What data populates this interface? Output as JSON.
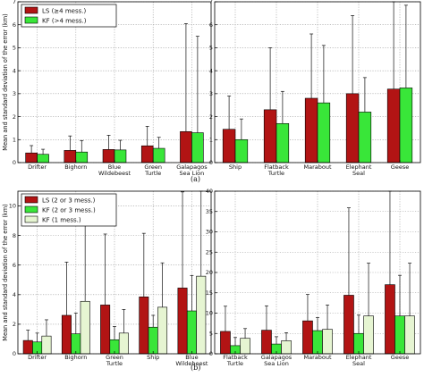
{
  "colors": {
    "LS": "#b21414",
    "KF": "#39e639",
    "KF1": "#e6f5d2"
  },
  "chart_data": [
    {
      "type": "bar",
      "panel": "a-left",
      "legend_position": "top-left",
      "ylabel": "Mean and standard deviation of the error (km)",
      "ylim": [
        0,
        7
      ],
      "yticks": [
        0,
        1,
        2,
        3,
        4,
        5,
        6,
        7
      ],
      "grid": true,
      "categories": [
        "Drifter",
        "Bighorn",
        "Blue\nWildebeest",
        "Green\nTurtle",
        "Galapagos\nSea Lion"
      ],
      "series": [
        {
          "name": "LS (≥4 mess.)",
          "color_key": "LS",
          "values": [
            0.42,
            0.53,
            0.57,
            0.73,
            1.35
          ],
          "err": [
            0.32,
            0.63,
            0.62,
            0.85,
            4.7
          ]
        },
        {
          "name": "KF (>4 mess.)",
          "color_key": "KF",
          "values": [
            0.36,
            0.46,
            0.55,
            0.62,
            1.3
          ],
          "err": [
            0.22,
            0.5,
            0.42,
            0.48,
            4.2
          ]
        }
      ]
    },
    {
      "type": "bar",
      "panel": "a-right",
      "ylim": [
        0,
        7
      ],
      "yticks": [
        0,
        1,
        2,
        3,
        4,
        5,
        6,
        7
      ],
      "grid": true,
      "categories": [
        "Ship",
        "Flatback\nTurtle",
        "Marabout",
        "Elephant\nSeal",
        "Geese"
      ],
      "series": [
        {
          "name": "LS (≥4 mess.)",
          "color_key": "LS",
          "values": [
            1.45,
            2.3,
            2.8,
            3.0,
            3.2
          ],
          "err": [
            1.45,
            2.7,
            2.8,
            3.4,
            3.9
          ]
        },
        {
          "name": "KF (>4 mess.)",
          "color_key": "KF",
          "values": [
            1.0,
            1.7,
            2.6,
            2.2,
            3.25
          ],
          "err": [
            0.9,
            1.4,
            2.5,
            1.5,
            3.6
          ]
        }
      ]
    },
    {
      "type": "bar",
      "panel": "b-left",
      "legend_position": "top-left",
      "ylabel": "Mean and standard deviation of the error (km)",
      "ylim": [
        0,
        11
      ],
      "yticks": [
        0,
        2,
        4,
        6,
        8,
        10
      ],
      "grid": true,
      "categories": [
        "Drifter",
        "Bighorn",
        "Green\nTurtle",
        "Ship",
        "Blue\nWildebeest"
      ],
      "series": [
        {
          "name": "LS (2 or 3 mess.)",
          "color_key": "LS",
          "values": [
            0.9,
            2.6,
            3.3,
            3.85,
            4.45
          ],
          "err": [
            0.7,
            3.6,
            4.8,
            4.3,
            6.5
          ]
        },
        {
          "name": "KF (2 or 3 mess.)",
          "color_key": "KF",
          "values": [
            0.8,
            1.35,
            0.95,
            1.8,
            2.9
          ],
          "err": [
            0.6,
            1.4,
            0.9,
            0.8,
            2.4
          ]
        },
        {
          "name": "KF (1 mess.)",
          "color_key": "KF1",
          "values": [
            1.2,
            3.55,
            1.4,
            3.15,
            5.25
          ],
          "err": [
            1.1,
            5.6,
            1.6,
            3.0,
            5.8
          ]
        }
      ]
    },
    {
      "type": "bar",
      "panel": "b-right",
      "ylim": [
        0,
        40
      ],
      "yticks": [
        0,
        5,
        10,
        15,
        20,
        25,
        30,
        35,
        40
      ],
      "grid": true,
      "categories": [
        "Flatback\nTurtle",
        "Galapagos\nSea Lion",
        "Marabout",
        "Elephant\nSeal",
        "Geese"
      ],
      "series": [
        {
          "name": "LS",
          "color_key": "LS",
          "values": [
            5.5,
            5.8,
            8.1,
            14.4,
            17.0
          ],
          "err": [
            6.2,
            6.0,
            6.5,
            21.5,
            23.0
          ]
        },
        {
          "name": "KF",
          "color_key": "KF",
          "values": [
            2.0,
            2.4,
            5.7,
            5.0,
            9.3
          ],
          "err": [
            2.0,
            1.8,
            3.2,
            4.5,
            10.0
          ]
        },
        {
          "name": "KF1",
          "color_key": "KF1",
          "values": [
            3.8,
            3.2,
            6.0,
            9.3,
            9.3
          ],
          "err": [
            2.4,
            2.0,
            6.0,
            13.0,
            13.0
          ]
        }
      ]
    }
  ],
  "panel_labels": {
    "a": "(a)",
    "b": "(b)"
  }
}
